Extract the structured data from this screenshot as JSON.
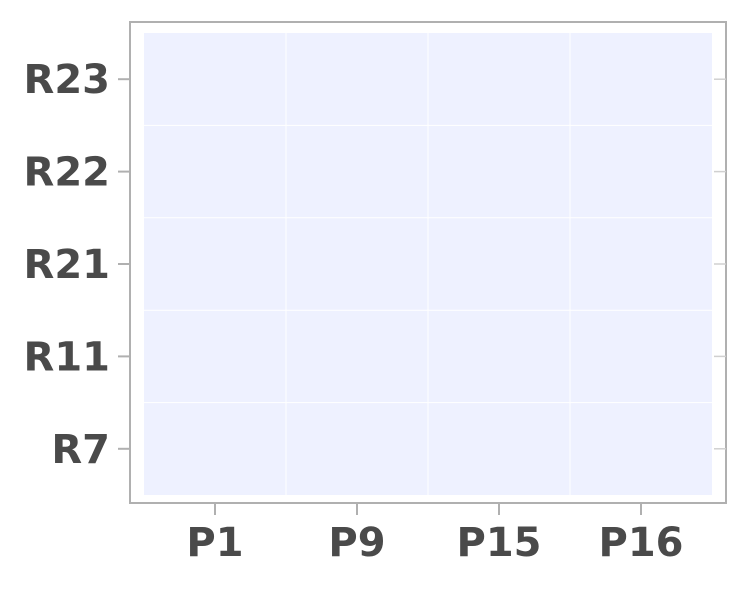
{
  "chart_data": {
    "type": "heatmap",
    "title": "",
    "xlabel": "",
    "ylabel": "",
    "x_categories": [
      "P1",
      "P9",
      "P15",
      "P16"
    ],
    "y_categories": [
      "R7",
      "R11",
      "R21",
      "R22",
      "R23"
    ],
    "values": [
      [
        0,
        0,
        0,
        0
      ],
      [
        0,
        0,
        0,
        0
      ],
      [
        0,
        0,
        0,
        0
      ],
      [
        0,
        0,
        0,
        0
      ],
      [
        0,
        0,
        0,
        0
      ]
    ],
    "cell_color": "#eef1ff",
    "grid": true,
    "legend": "none"
  }
}
